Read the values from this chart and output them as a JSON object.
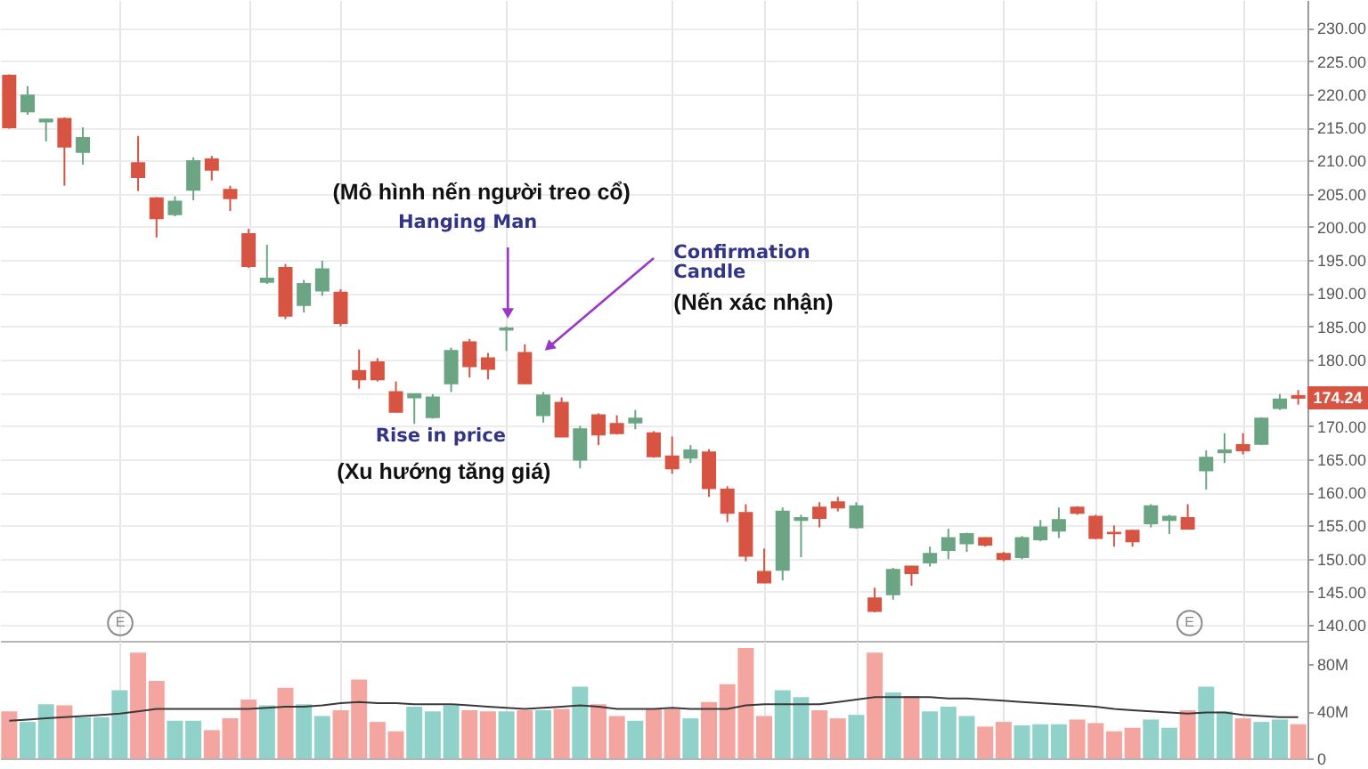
{
  "chart_data": [
    {
      "type": "candlestick",
      "categories": [
        null,
        null,
        null,
        null,
        null,
        null,
        null,
        null,
        null,
        null,
        null,
        null,
        null,
        null,
        null,
        null,
        null,
        null,
        null,
        null,
        null,
        null,
        null,
        null,
        null,
        null,
        null,
        null,
        null,
        null,
        null,
        null,
        null,
        null,
        null,
        null,
        null,
        null,
        null,
        null,
        null,
        null,
        null,
        null,
        null,
        null,
        null,
        null,
        null,
        null,
        null,
        null,
        null,
        null,
        null,
        null,
        null,
        null,
        null,
        null,
        null,
        null,
        null,
        null,
        null,
        null,
        null,
        null,
        null,
        null,
        null
      ],
      "ohlc": [
        [
          222.8,
          223.0,
          214.8,
          215.0
        ],
        [
          217.4,
          221.2,
          216.9,
          219.8
        ],
        [
          215.9,
          216.3,
          212.9,
          216.2
        ],
        [
          216.3,
          216.5,
          206.2,
          212.1
        ],
        [
          211.3,
          215.0,
          209.4,
          213.4
        ],
        null,
        null,
        [
          209.6,
          213.7,
          205.4,
          207.5
        ],
        [
          204.3,
          204.5,
          198.4,
          201.3
        ],
        [
          201.9,
          204.6,
          201.6,
          203.8
        ],
        [
          205.6,
          210.5,
          204.0,
          209.9
        ],
        [
          210.2,
          210.7,
          207.0,
          208.6
        ],
        [
          205.6,
          206.2,
          202.4,
          204.3
        ],
        [
          198.9,
          199.7,
          193.8,
          194.1
        ],
        [
          191.7,
          197.3,
          191.4,
          192.2
        ],
        [
          193.8,
          194.4,
          186.1,
          186.6
        ],
        [
          188.2,
          192.0,
          187.1,
          191.4
        ],
        [
          190.4,
          194.9,
          189.6,
          193.6
        ],
        [
          190.1,
          190.6,
          185.0,
          185.5
        ],
        [
          178.3,
          181.5,
          175.6,
          177.0
        ],
        [
          179.6,
          180.2,
          176.7,
          177.0
        ],
        [
          175.1,
          176.7,
          172.0,
          172.1
        ],
        [
          174.3,
          174.9,
          170.3,
          174.8
        ],
        [
          171.3,
          174.8,
          171.1,
          174.3
        ],
        [
          176.4,
          181.8,
          175.1,
          181.3
        ],
        [
          182.6,
          183.1,
          177.3,
          179.0
        ],
        [
          180.2,
          181.0,
          177.0,
          178.6
        ],
        [
          184.5,
          185.0,
          181.3,
          184.7
        ],
        [
          181.0,
          182.3,
          176.3,
          176.4
        ],
        [
          171.6,
          175.1,
          170.5,
          174.6
        ],
        [
          173.5,
          174.3,
          168.3,
          168.4
        ],
        [
          164.9,
          170.0,
          163.6,
          169.5
        ],
        [
          171.6,
          171.9,
          167.1,
          168.7
        ],
        [
          170.3,
          171.6,
          168.7,
          168.9
        ],
        [
          170.5,
          172.4,
          169.5,
          171.1
        ],
        [
          168.9,
          169.2,
          165.2,
          165.4
        ],
        [
          165.4,
          168.4,
          162.8,
          163.6
        ],
        [
          165.2,
          167.1,
          164.4,
          166.3
        ],
        [
          166.0,
          166.5,
          159.3,
          160.6
        ],
        [
          160.4,
          160.9,
          155.5,
          156.9
        ],
        [
          156.9,
          158.2,
          149.6,
          150.4
        ],
        [
          148.0,
          151.5,
          146.3,
          146.4
        ],
        [
          148.3,
          157.7,
          146.7,
          157.1
        ],
        [
          155.8,
          156.6,
          150.2,
          156.1
        ],
        [
          157.7,
          158.5,
          154.7,
          156.1
        ],
        [
          158.5,
          159.3,
          157.1,
          157.7
        ],
        [
          154.7,
          158.5,
          154.5,
          157.9
        ],
        [
          144.0,
          145.6,
          141.9,
          142.1
        ],
        [
          144.6,
          148.6,
          143.8,
          148.3
        ],
        [
          148.8,
          148.9,
          145.9,
          147.8
        ],
        [
          149.4,
          151.8,
          148.8,
          150.7
        ],
        [
          151.3,
          154.5,
          149.9,
          153.1
        ],
        [
          152.3,
          153.9,
          151.0,
          153.7
        ],
        [
          153.1,
          153.2,
          151.8,
          152.1
        ],
        [
          150.7,
          151.0,
          149.6,
          149.9
        ],
        [
          150.2,
          153.4,
          149.9,
          153.1
        ],
        [
          152.9,
          155.8,
          152.6,
          154.7
        ],
        [
          154.2,
          157.7,
          153.1,
          155.8
        ],
        [
          157.7,
          157.9,
          156.6,
          156.9
        ],
        [
          156.3,
          156.6,
          152.9,
          153.1
        ],
        [
          153.9,
          155.0,
          151.8,
          153.8
        ],
        [
          154.2,
          154.3,
          151.8,
          152.6
        ],
        [
          155.3,
          158.2,
          154.7,
          157.9
        ],
        [
          155.8,
          156.6,
          153.7,
          156.3
        ],
        [
          156.1,
          158.2,
          154.4,
          154.5
        ],
        [
          163.3,
          166.3,
          160.4,
          165.2
        ],
        [
          166.0,
          168.9,
          164.4,
          166.3
        ],
        [
          167.1,
          168.9,
          165.7,
          166.3
        ],
        [
          167.3,
          171.3,
          167.1,
          171.1
        ],
        [
          172.7,
          174.8,
          172.4,
          174.0
        ],
        [
          174.5,
          175.4,
          173.2,
          174.24
        ]
      ],
      "colors": [
        "#d75442",
        "#6ba583",
        "#6ba583",
        "#d75442",
        "#6ba583",
        null,
        null,
        "#d75442",
        "#d75442",
        "#6ba583",
        "#6ba583",
        "#d75442",
        "#d75442",
        "#d75442",
        "#6ba583",
        "#d75442",
        "#6ba583",
        "#6ba583",
        "#d75442",
        "#d75442",
        "#d75442",
        "#d75442",
        "#6ba583",
        "#6ba583",
        "#6ba583",
        "#d75442",
        "#d75442",
        "#6ba583",
        "#d75442",
        "#6ba583",
        "#d75442",
        "#6ba583",
        "#d75442",
        "#d75442",
        "#6ba583",
        "#d75442",
        "#d75442",
        "#6ba583",
        "#d75442",
        "#d75442",
        "#d75442",
        "#d75442",
        "#6ba583",
        "#6ba583",
        "#d75442",
        "#d75442",
        "#6ba583",
        "#d75442",
        "#6ba583",
        "#d75442",
        "#6ba583",
        "#6ba583",
        "#6ba583",
        "#d75442",
        "#d75442",
        "#6ba583",
        "#6ba583",
        "#6ba583",
        "#d75442",
        "#d75442",
        "#d75442",
        "#d75442",
        "#6ba583",
        "#6ba583",
        "#d75442",
        "#6ba583",
        "#6ba583",
        "#d75442",
        "#6ba583",
        "#6ba583",
        "#d75442"
      ],
      "ylim": [
        137.6,
        234.2
      ],
      "yticks": [
        {
          "value": 140,
          "label": "140.00"
        },
        {
          "value": 145,
          "label": "145.00"
        },
        {
          "value": 150,
          "label": "150.00"
        },
        {
          "value": 155,
          "label": "155.00"
        },
        {
          "value": 160,
          "label": "160.00"
        },
        {
          "value": 165,
          "label": "165.00"
        },
        {
          "value": 170,
          "label": "170.00"
        },
        {
          "value": 175,
          "label": null
        },
        {
          "value": 180,
          "label": "180.00"
        },
        {
          "value": 185,
          "label": "185.00"
        },
        {
          "value": 190,
          "label": "190.00"
        },
        {
          "value": 195,
          "label": "195.00"
        },
        {
          "value": 200,
          "label": "200.00"
        },
        {
          "value": 205,
          "label": "205.00"
        },
        {
          "value": 210,
          "label": "210.00"
        },
        {
          "value": 215,
          "label": "215.00"
        },
        {
          "value": 220,
          "label": "220.00"
        },
        {
          "value": 225,
          "label": "225.00"
        },
        {
          "value": 230,
          "label": "230.00"
        }
      ],
      "grid": true,
      "tick_labels": "y",
      "annotations": [
        "(Mô hình nến người treo cổ)",
        "Hanging Man",
        "Confirmation Candle",
        "(Nến xác nhận)",
        "Rise in price",
        "(Xu hướng tăng giá)",
        "E",
        "E",
        {
          "text": "174.24",
          "y": 174.24
        }
      ]
    },
    {
      "type": "bar",
      "categories": [
        null,
        null,
        null,
        null,
        null,
        null,
        null,
        null,
        null,
        null,
        null,
        null,
        null,
        null,
        null,
        null,
        null,
        null,
        null,
        null,
        null,
        null,
        null,
        null,
        null,
        null,
        null,
        null,
        null,
        null,
        null,
        null,
        null,
        null,
        null,
        null,
        null,
        null,
        null,
        null,
        null,
        null,
        null,
        null,
        null,
        null,
        null,
        null,
        null,
        null,
        null,
        null,
        null,
        null,
        null,
        null,
        null,
        null,
        null,
        null,
        null,
        null,
        null,
        null,
        null,
        null,
        null,
        null,
        null,
        null,
        null
      ],
      "series": [
        {
          "type": "bar",
          "values": [
            40,
            31,
            46,
            45,
            35,
            35,
            58,
            90,
            66,
            32,
            32,
            24,
            34,
            50,
            45,
            60,
            46,
            36,
            41,
            67,
            31,
            23,
            44,
            40,
            45,
            41,
            40,
            40,
            41,
            41,
            42,
            61,
            46,
            36,
            32,
            42,
            42,
            34,
            48,
            63,
            94,
            36,
            58,
            52,
            41,
            34,
            37,
            90,
            56,
            53,
            40,
            44,
            36,
            27,
            31,
            28,
            29,
            29,
            33,
            30,
            23,
            26,
            33,
            26,
            41,
            61,
            40,
            34,
            31,
            33,
            29
          ],
          "colors": [
            "#f4a59f",
            "#90d2c9",
            "#90d2c9",
            "#f4a59f",
            "#90d2c9",
            "#90d2c9",
            "#90d2c9",
            "#f4a59f",
            "#f4a59f",
            "#90d2c9",
            "#90d2c9",
            "#f4a59f",
            "#f4a59f",
            "#f4a59f",
            "#90d2c9",
            "#f4a59f",
            "#90d2c9",
            "#90d2c9",
            "#f4a59f",
            "#f4a59f",
            "#f4a59f",
            "#f4a59f",
            "#90d2c9",
            "#90d2c9",
            "#90d2c9",
            "#f4a59f",
            "#f4a59f",
            "#90d2c9",
            "#f4a59f",
            "#90d2c9",
            "#f4a59f",
            "#90d2c9",
            "#f4a59f",
            "#f4a59f",
            "#90d2c9",
            "#f4a59f",
            "#f4a59f",
            "#90d2c9",
            "#f4a59f",
            "#f4a59f",
            "#f4a59f",
            "#f4a59f",
            "#90d2c9",
            "#90d2c9",
            "#f4a59f",
            "#f4a59f",
            "#90d2c9",
            "#f4a59f",
            "#90d2c9",
            "#f4a59f",
            "#90d2c9",
            "#90d2c9",
            "#90d2c9",
            "#f4a59f",
            "#f4a59f",
            "#90d2c9",
            "#90d2c9",
            "#90d2c9",
            "#f4a59f",
            "#f4a59f",
            "#f4a59f",
            "#f4a59f",
            "#90d2c9",
            "#90d2c9",
            "#f4a59f",
            "#90d2c9",
            "#90d2c9",
            "#f4a59f",
            "#90d2c9",
            "#90d2c9",
            "#f4a59f"
          ]
        },
        {
          "type": "line",
          "color": "#3a3a3a",
          "values": [
            32,
            33,
            34,
            35,
            36,
            37,
            38,
            40,
            42,
            42,
            42,
            42,
            42,
            42,
            43,
            44,
            44,
            45,
            47,
            48,
            47,
            47,
            46,
            46,
            46,
            45,
            44,
            43,
            42,
            43,
            44,
            45,
            44,
            42,
            42,
            42,
            43,
            42,
            42,
            42,
            45,
            46,
            46,
            46,
            46,
            48,
            50,
            52,
            52,
            52,
            52,
            51,
            51,
            50,
            49,
            48,
            47,
            46,
            45,
            44,
            42,
            41,
            40,
            39,
            38,
            39,
            39,
            37,
            36,
            35,
            35
          ]
        }
      ],
      "ylim": [
        0,
        100
      ],
      "yticks": [
        0,
        {
          "value": 40,
          "label": "40M"
        },
        {
          "value": 80,
          "label": "80M"
        }
      ],
      "grid": "x",
      "tick_labels": "y"
    }
  ]
}
